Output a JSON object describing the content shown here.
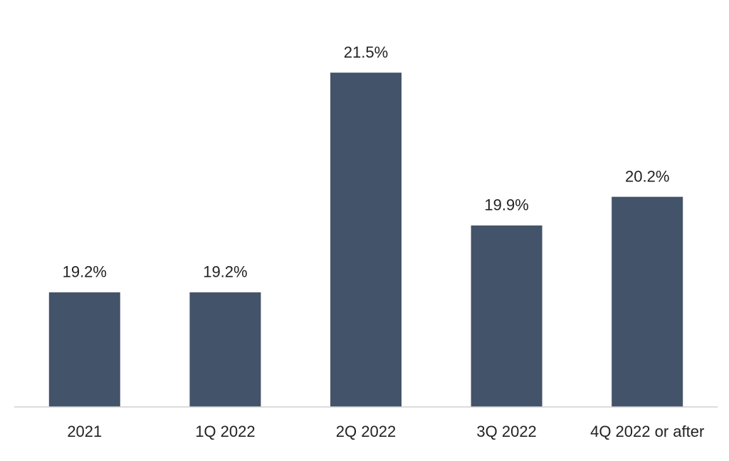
{
  "chart_data": {
    "type": "bar",
    "categories": [
      "2021",
      "1Q 2022",
      "2Q 2022",
      "3Q 2022",
      "4Q 2022 or after"
    ],
    "values": [
      19.2,
      19.2,
      21.5,
      19.9,
      20.2
    ],
    "value_labels": [
      "19.2%",
      "19.2%",
      "21.5%",
      "19.9%",
      "20.2%"
    ],
    "color": "#435369",
    "ylim": [
      18,
      22
    ]
  }
}
